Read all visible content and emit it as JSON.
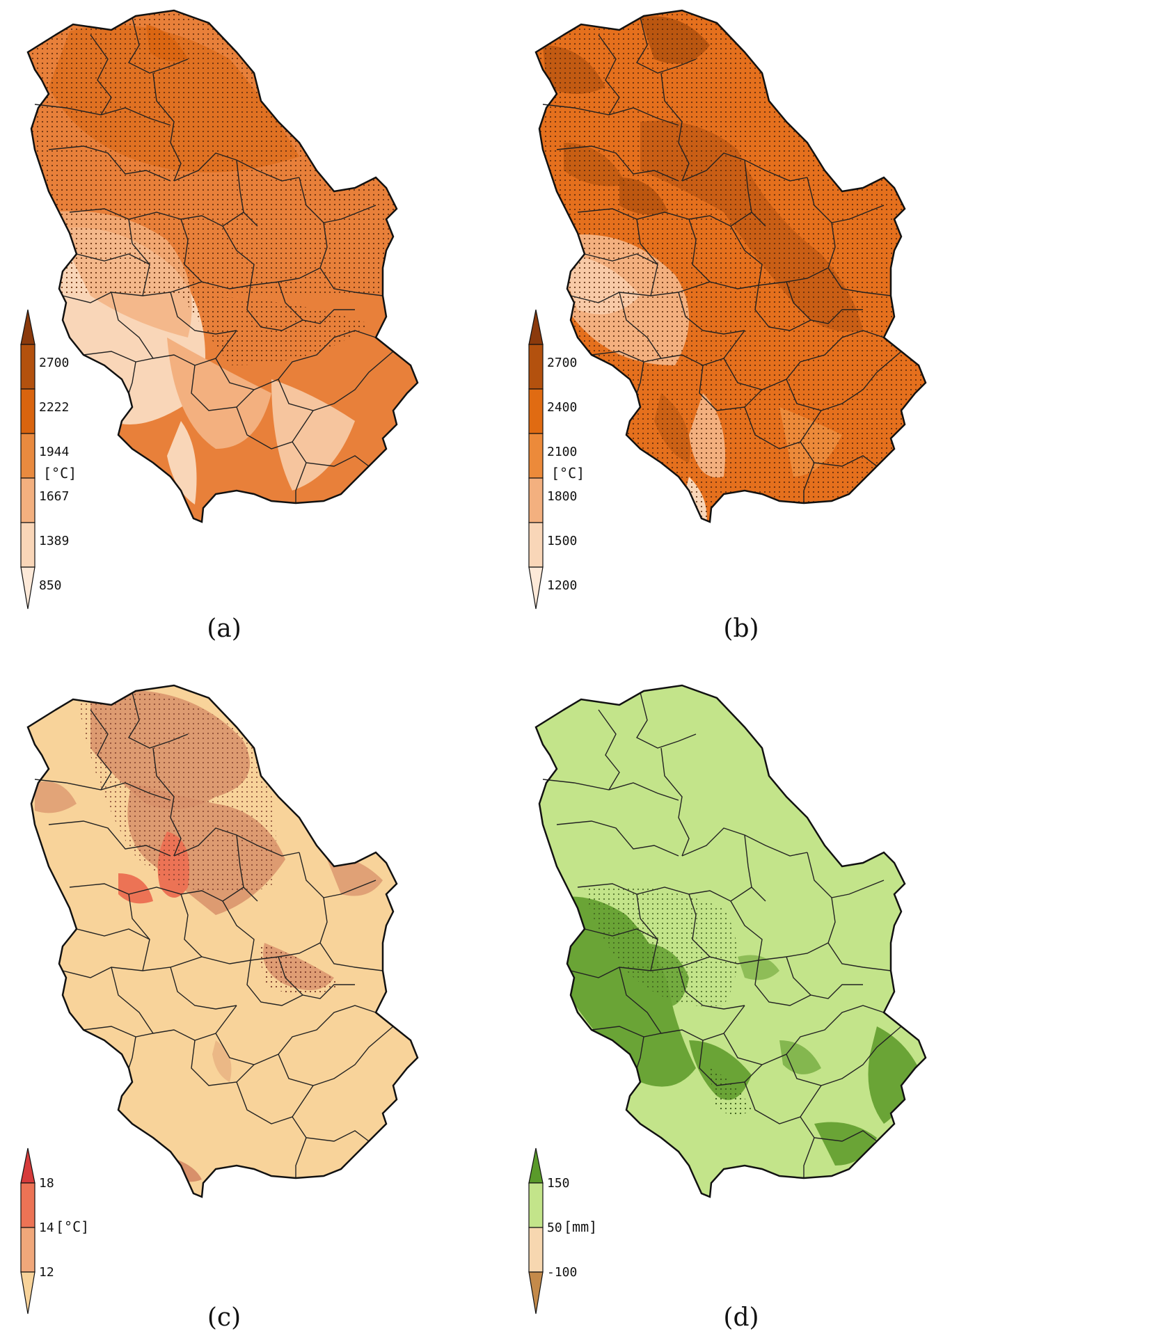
{
  "figure": {
    "panels": [
      {
        "id": "a",
        "label": "(a)",
        "unit": "[°C]",
        "colorbar": {
          "ticks": [
            "2700",
            "2222",
            "1944",
            "1667",
            "1389",
            "850"
          ],
          "colors": [
            "#8b3a0c",
            "#b3510e",
            "#d9640f",
            "#e98a3f",
            "#f3b07f",
            "#f9d6b8",
            "#fde9d8"
          ]
        },
        "map_colors": {
          "base": "#e8803a",
          "dark": "#d9640f",
          "light": "#f3b07f",
          "lightest": "#f9d6b8",
          "stipple": "#6a3210"
        }
      },
      {
        "id": "b",
        "label": "(b)",
        "unit": "[°C]",
        "colorbar": {
          "ticks": [
            "2700",
            "2400",
            "2100",
            "1800",
            "1500",
            "1200"
          ],
          "colors": [
            "#8b3a0c",
            "#b3510e",
            "#e06b12",
            "#ec8a3a",
            "#f3b07f",
            "#f9d6b8",
            "#fde9d8"
          ]
        },
        "map_colors": {
          "base": "#e5701d",
          "dark": "#b3510e",
          "light": "#ec8a3a",
          "lightest": "#f3b07f",
          "stipple": "#5a2a0c"
        }
      },
      {
        "id": "c",
        "label": "(c)",
        "unit": "[°C]",
        "colorbar": {
          "ticks": [
            "18",
            "14",
            "12"
          ],
          "colors": [
            "#d63b3b",
            "#ec7355",
            "#f0a77a",
            "#f8d39a"
          ]
        },
        "map_colors": {
          "base": "#f8d39a",
          "dark": "#d8906a",
          "light": "#f0a77a",
          "lightest": "#f8d39a",
          "stipple": "#7a3a2a"
        }
      },
      {
        "id": "d",
        "label": "(d)",
        "unit": "[mm]",
        "colorbar": {
          "ticks": [
            "150",
            "50",
            "-100"
          ],
          "colors": [
            "#5a9a2a",
            "#c3e48a",
            "#f7d7b0",
            "#c48a4a"
          ]
        },
        "map_colors": {
          "base": "#c3e48a",
          "dark": "#6aa436",
          "light": "#c3e48a",
          "lightest": "#c3e48a",
          "stipple": "#3a5a1a"
        }
      }
    ]
  }
}
